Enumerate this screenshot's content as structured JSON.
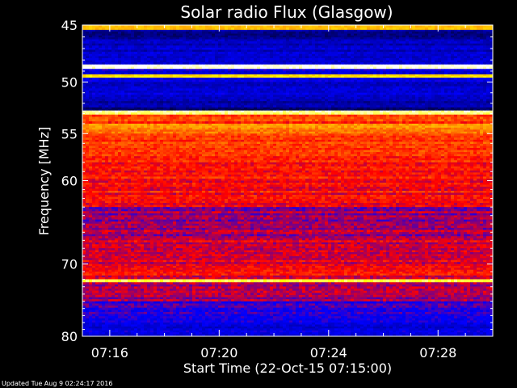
{
  "chart_data": {
    "type": "heatmap",
    "title": "Solar radio Flux (Glasgow)",
    "xlabel": "Start Time (22-Oct-15 07:15:00)",
    "ylabel": "Frequency [MHz]",
    "x_tick_labels": [
      "07:16",
      "07:20",
      "07:24",
      "07:28"
    ],
    "x_tick_minutes": [
      16,
      20,
      24,
      28
    ],
    "x_range_minutes": [
      15,
      30
    ],
    "y_tick_labels": [
      "45",
      "50",
      "55",
      "60",
      "70",
      "80"
    ],
    "y_tick_values": [
      45,
      50,
      55,
      60,
      70,
      80
    ],
    "y_range": [
      45,
      80
    ],
    "y_scale": "log",
    "y_inverted": true,
    "grid": false,
    "colormap": [
      "#000000",
      "#00008b",
      "#0000ff",
      "#ff0000",
      "#ffa500",
      "#ffff00",
      "#ffffff"
    ],
    "intensity_bands": [
      {
        "freq_from": 45.0,
        "freq_to": 45.4,
        "level": 0.7
      },
      {
        "freq_from": 45.4,
        "freq_to": 46.2,
        "level": 0.18
      },
      {
        "freq_from": 46.2,
        "freq_to": 48.4,
        "level": 0.25
      },
      {
        "freq_from": 48.4,
        "freq_to": 48.8,
        "level": 0.97
      },
      {
        "freq_from": 48.8,
        "freq_to": 49.3,
        "level": 0.3
      },
      {
        "freq_from": 49.3,
        "freq_to": 49.6,
        "level": 0.8
      },
      {
        "freq_from": 49.6,
        "freq_to": 51.2,
        "level": 0.27
      },
      {
        "freq_from": 51.2,
        "freq_to": 52.4,
        "level": 0.22
      },
      {
        "freq_from": 52.4,
        "freq_to": 52.7,
        "level": 0.12
      },
      {
        "freq_from": 52.7,
        "freq_to": 53.1,
        "level": 0.93
      },
      {
        "freq_from": 53.1,
        "freq_to": 54.0,
        "level": 0.55
      },
      {
        "freq_from": 54.0,
        "freq_to": 55.0,
        "level": 0.63
      },
      {
        "freq_from": 55.0,
        "freq_to": 58.0,
        "level": 0.56
      },
      {
        "freq_from": 58.0,
        "freq_to": 63.0,
        "level": 0.51
      },
      {
        "freq_from": 63.0,
        "freq_to": 67.0,
        "level": 0.44
      },
      {
        "freq_from": 67.0,
        "freq_to": 70.0,
        "level": 0.46
      },
      {
        "freq_from": 70.0,
        "freq_to": 72.0,
        "level": 0.5
      },
      {
        "freq_from": 72.0,
        "freq_to": 72.4,
        "level": 0.92
      },
      {
        "freq_from": 72.4,
        "freq_to": 75.0,
        "level": 0.45
      },
      {
        "freq_from": 75.0,
        "freq_to": 78.0,
        "level": 0.36
      },
      {
        "freq_from": 78.0,
        "freq_to": 80.0,
        "level": 0.28
      }
    ]
  },
  "footer": {
    "updated": "Updated Tue Aug  9 02:24:17 2016"
  }
}
